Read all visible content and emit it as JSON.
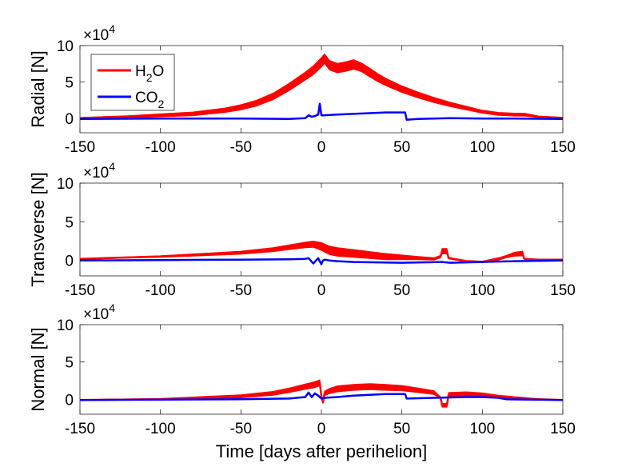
{
  "figure": {
    "xlabel": "Time [days after perihelion]",
    "exponent": "×10",
    "exponent_power": "4"
  },
  "chart_data": [
    {
      "type": "line",
      "panel": "radial",
      "ylabel": "Radial [N]",
      "xlim": [
        -150,
        150
      ],
      "ylim": [
        -2,
        10
      ],
      "ylim_display_units": "x 1e4 N",
      "xticks": [
        -150,
        -100,
        -50,
        0,
        50,
        100,
        150
      ],
      "yticks": [
        0,
        5,
        10
      ],
      "legend": {
        "placement": "top-left",
        "entries": [
          {
            "label_main": "H",
            "label_sub": "2",
            "label_tail": "O",
            "color": "#ff0000"
          },
          {
            "label_main": "CO",
            "label_sub": "2",
            "label_tail": "",
            "color": "#0000ff"
          }
        ]
      },
      "series": [
        {
          "name": "H2O",
          "color": "#ff0000",
          "x": [
            -150,
            -120,
            -100,
            -80,
            -60,
            -50,
            -40,
            -30,
            -20,
            -10,
            -5,
            0,
            2,
            5,
            10,
            15,
            20,
            25,
            30,
            35,
            40,
            50,
            60,
            70,
            80,
            90,
            100,
            110,
            120,
            126,
            135,
            150
          ],
          "y": [
            0,
            0.2,
            0.4,
            0.6,
            1.1,
            1.5,
            2.1,
            3.0,
            4.3,
            5.8,
            6.6,
            7.7,
            8.2,
            7.3,
            6.9,
            7.1,
            7.4,
            7.0,
            6.3,
            5.6,
            5.0,
            4.0,
            3.2,
            2.5,
            1.9,
            1.4,
            0.9,
            0.6,
            0.5,
            0.5,
            0.2,
            0.05
          ],
          "y_spread": [
            0.2,
            0.3,
            0.4,
            0.5,
            0.6,
            0.7,
            0.8,
            0.9,
            1.0,
            1.1,
            1.2,
            1.3,
            1.3,
            1.3,
            1.3,
            1.3,
            1.3,
            1.2,
            1.2,
            1.1,
            1.0,
            0.9,
            0.8,
            0.7,
            0.6,
            0.5,
            0.4,
            0.4,
            0.4,
            0.4,
            0.2,
            0.1
          ]
        },
        {
          "name": "CO2",
          "color": "#0000ff",
          "x": [
            -150,
            -100,
            -50,
            -20,
            -10,
            -8,
            -6,
            -4,
            -2,
            -1,
            0,
            1,
            10,
            20,
            30,
            40,
            50,
            52,
            53,
            60,
            80,
            100,
            120,
            150
          ],
          "y": [
            -0.1,
            -0.05,
            -0.05,
            -0.1,
            0.0,
            0.4,
            0.2,
            0.3,
            0.5,
            2.0,
            0.4,
            0.4,
            0.5,
            0.6,
            0.7,
            0.8,
            0.8,
            0.8,
            -0.2,
            -0.1,
            0.0,
            -0.05,
            -0.05,
            -0.1
          ],
          "y_spread": [
            0,
            0,
            0,
            0,
            0,
            0,
            0,
            0,
            0,
            0,
            0,
            0,
            0,
            0,
            0,
            0,
            0,
            0,
            0,
            0,
            0,
            0,
            0,
            0
          ]
        }
      ]
    },
    {
      "type": "line",
      "panel": "transverse",
      "ylabel": "Transverse [N]",
      "xlim": [
        -150,
        150
      ],
      "ylim": [
        -2,
        10
      ],
      "ylim_display_units": "x 1e4 N",
      "xticks": [
        -150,
        -100,
        -50,
        0,
        50,
        100,
        150
      ],
      "yticks": [
        0,
        5,
        10
      ],
      "series": [
        {
          "name": "H2O",
          "color": "#ff0000",
          "x": [
            -150,
            -100,
            -50,
            -30,
            -20,
            -10,
            -5,
            0,
            5,
            10,
            20,
            30,
            40,
            50,
            60,
            70,
            74,
            75,
            78,
            79,
            90,
            100,
            110,
            115,
            120,
            125,
            126,
            135,
            150
          ],
          "y": [
            0.2,
            0.5,
            1.0,
            1.4,
            1.7,
            2.0,
            2.1,
            1.8,
            1.3,
            1.1,
            0.9,
            0.7,
            0.5,
            0.4,
            0.3,
            0.2,
            0.5,
            1.2,
            1.2,
            0.3,
            -0.1,
            -0.2,
            0.2,
            0.5,
            0.8,
            0.9,
            0.2,
            0.1,
            0.1
          ],
          "y_spread": [
            0.1,
            0.2,
            0.4,
            0.5,
            0.6,
            0.7,
            0.8,
            1.0,
            1.1,
            1.1,
            1.0,
            0.9,
            0.8,
            0.6,
            0.4,
            0.3,
            0.3,
            0.7,
            0.7,
            0.2,
            0.2,
            0.2,
            0.3,
            0.3,
            0.5,
            0.6,
            0.1,
            0.1,
            0.1
          ]
        },
        {
          "name": "CO2",
          "color": "#0000ff",
          "x": [
            -150,
            -100,
            -50,
            -20,
            -10,
            -8,
            -5,
            -2,
            0,
            1,
            2,
            5,
            10,
            20,
            50,
            75,
            80,
            100,
            120,
            150
          ],
          "y": [
            0.0,
            0.05,
            0.1,
            0.15,
            0.2,
            0.3,
            -0.4,
            0.3,
            -0.5,
            0.0,
            0.1,
            0.0,
            -0.1,
            -0.2,
            -0.3,
            -0.2,
            -0.3,
            -0.2,
            -0.1,
            0.0
          ],
          "y_spread": [
            0,
            0,
            0,
            0,
            0,
            0,
            0,
            0,
            0,
            0,
            0,
            0,
            0,
            0,
            0,
            0,
            0,
            0,
            0,
            0
          ]
        }
      ]
    },
    {
      "type": "line",
      "panel": "normal",
      "ylabel": "Normal [N]",
      "xlim": [
        -150,
        150
      ],
      "ylim": [
        -2,
        10
      ],
      "ylim_display_units": "x 1e4 N",
      "xticks": [
        -150,
        -100,
        -50,
        0,
        50,
        100,
        150
      ],
      "yticks": [
        0,
        5,
        10
      ],
      "series": [
        {
          "name": "H2O",
          "color": "#ff0000",
          "x": [
            -150,
            -100,
            -50,
            -30,
            -20,
            -10,
            -5,
            -1,
            0,
            1,
            2,
            5,
            10,
            20,
            30,
            40,
            50,
            60,
            70,
            74,
            75,
            78,
            79,
            90,
            100,
            110,
            115,
            120,
            126,
            135,
            150
          ],
          "y": [
            -0.1,
            0.0,
            0.4,
            0.8,
            1.2,
            1.7,
            1.9,
            2.2,
            0.4,
            -0.4,
            0.8,
            1.1,
            1.4,
            1.6,
            1.7,
            1.6,
            1.5,
            1.2,
            0.9,
            0.2,
            -0.8,
            -0.8,
            0.6,
            0.7,
            0.6,
            0.4,
            0.3,
            0.2,
            0.1,
            0.0,
            -0.1
          ],
          "y_spread": [
            0.1,
            0.2,
            0.4,
            0.5,
            0.6,
            0.7,
            0.8,
            0.8,
            0.3,
            0.3,
            0.6,
            0.7,
            0.8,
            0.8,
            0.8,
            0.8,
            0.7,
            0.6,
            0.5,
            0.2,
            0.5,
            0.5,
            0.6,
            0.6,
            0.5,
            0.3,
            0.3,
            0.3,
            0.3,
            0.1,
            0.1
          ]
        },
        {
          "name": "CO2",
          "color": "#0000ff",
          "x": [
            -150,
            -100,
            -50,
            -20,
            -10,
            -8,
            -6,
            -4,
            -2,
            0,
            2,
            10,
            20,
            30,
            40,
            50,
            52,
            53,
            70,
            90,
            100,
            110,
            115,
            150
          ],
          "y": [
            -0.1,
            -0.05,
            0.0,
            0.1,
            0.3,
            0.9,
            0.3,
            0.8,
            0.5,
            0.1,
            0.2,
            0.3,
            0.5,
            0.6,
            0.7,
            0.7,
            0.7,
            0.1,
            0.2,
            0.3,
            0.3,
            0.2,
            0.0,
            -0.1
          ],
          "y_spread": [
            0,
            0,
            0,
            0,
            0,
            0,
            0,
            0,
            0,
            0,
            0,
            0,
            0,
            0,
            0,
            0,
            0,
            0,
            0,
            0,
            0,
            0,
            0,
            0
          ]
        }
      ]
    }
  ]
}
